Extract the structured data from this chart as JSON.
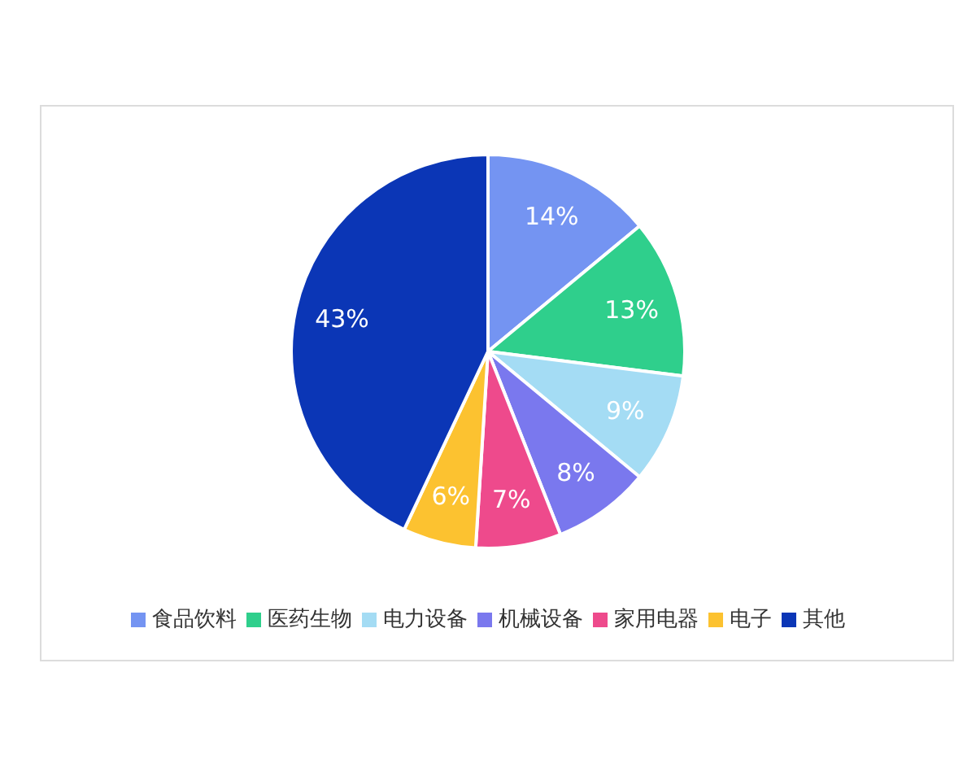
{
  "chart_data": {
    "type": "pie",
    "categories": [
      "食品饮料",
      "医药生物",
      "电力设备",
      "机械设备",
      "家用电器",
      "电子",
      "其他"
    ],
    "values": [
      14,
      13,
      9,
      8,
      7,
      6,
      43
    ],
    "value_labels": [
      "14%",
      "13%",
      "9%",
      "8%",
      "7%",
      "6%",
      "43%"
    ],
    "colors": [
      "#7494f2",
      "#2fcf8c",
      "#a4dcf4",
      "#7a78ee",
      "#ee4a8c",
      "#fcc230",
      "#0b36b6"
    ],
    "legend": "bottom"
  }
}
